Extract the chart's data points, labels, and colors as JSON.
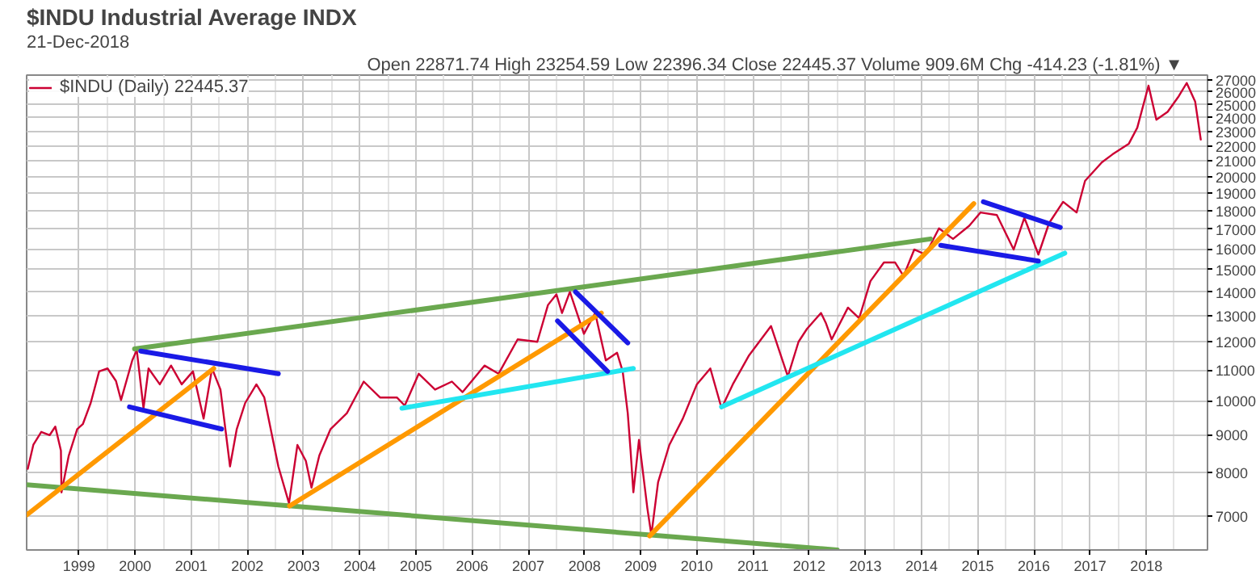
{
  "chart_data": {
    "type": "line",
    "title": "$INDU Industrial Average INDX",
    "annotations": [
      "21-Dec-2018",
      "Open 22871.74  High 23254.59  Low 22396.34  Close 22445.37  Volume 909.6M  Chg -414.23 (-1.81%) ▼"
    ],
    "log": "y",
    "grid": true,
    "legend": "top left",
    "marker": "none",
    "line_style": "solid",
    "xlim": [
      1998.07,
      2019.09
    ],
    "xticks": [
      1999,
      2000,
      2001,
      2002,
      2003,
      2004,
      2005,
      2006,
      2007,
      2008,
      2009,
      2010,
      2011,
      2012,
      2013,
      2014,
      2015,
      2016,
      2017,
      2018
    ],
    "ylim": [
      6300,
      27400
    ],
    "yticks": [
      7000,
      8000,
      9000,
      10000,
      11000,
      12000,
      13000,
      14000,
      15000,
      16000,
      17000,
      18000,
      19000,
      20000,
      21000,
      22000,
      23000,
      24000,
      25000,
      26000,
      27000
    ],
    "series": [
      {
        "name": "$INDU (Daily) 22445.37",
        "color": "#cc0033",
        "x": [
          1998.09,
          1998.19,
          1998.33,
          1998.48,
          1998.58,
          1998.68,
          1998.69,
          1998.82,
          1998.97,
          1999.07,
          1999.21,
          1999.36,
          1999.51,
          1999.66,
          1999.75,
          1999.95,
          2000.03,
          2000.15,
          2000.24,
          2000.44,
          2000.64,
          2000.83,
          2001.03,
          2001.22,
          2001.37,
          2001.52,
          2001.69,
          2001.81,
          2001.96,
          2002.16,
          2002.3,
          2002.55,
          2002.74,
          2002.89,
          2003.04,
          2003.14,
          2003.28,
          2003.48,
          2003.77,
          2004.07,
          2004.36,
          2004.66,
          2004.8,
          2005.05,
          2005.34,
          2005.64,
          2005.83,
          2006.22,
          2006.47,
          2006.81,
          2007.16,
          2007.35,
          2007.5,
          2007.6,
          2007.74,
          2007.99,
          2008.19,
          2008.38,
          2008.58,
          2008.68,
          2008.77,
          2008.82,
          2008.87,
          2008.97,
          2009.12,
          2009.19,
          2009.31,
          2009.51,
          2009.75,
          2010.0,
          2010.24,
          2010.44,
          2010.64,
          2010.93,
          2011.32,
          2011.62,
          2011.81,
          2011.96,
          2012.21,
          2012.3,
          2012.4,
          2012.69,
          2012.89,
          2013.09,
          2013.33,
          2013.53,
          2013.68,
          2013.87,
          2014.07,
          2014.31,
          2014.56,
          2014.85,
          2015.05,
          2015.34,
          2015.64,
          2015.83,
          2016.08,
          2016.27,
          2016.52,
          2016.76,
          2016.91,
          2017.21,
          2017.4,
          2017.69,
          2017.84,
          2018.04,
          2018.18,
          2018.38,
          2018.58,
          2018.72,
          2018.87,
          2018.97
        ],
        "values": [
          8100,
          8730,
          9080,
          8990,
          9230,
          8570,
          7530,
          8440,
          9160,
          9300,
          9930,
          10950,
          11050,
          10630,
          10020,
          11330,
          11700,
          9770,
          11050,
          10520,
          11150,
          10520,
          10950,
          9460,
          11050,
          10350,
          8160,
          9160,
          9930,
          10520,
          10100,
          8160,
          7280,
          8720,
          8300,
          7640,
          8440,
          9160,
          9620,
          10610,
          10100,
          10100,
          9850,
          10870,
          10350,
          10610,
          10270,
          11150,
          10870,
          12090,
          12000,
          13450,
          13900,
          13120,
          14010,
          12300,
          13120,
          11330,
          11600,
          10950,
          9620,
          8570,
          7530,
          8860,
          7160,
          6600,
          7770,
          8720,
          9460,
          10520,
          11050,
          9770,
          10520,
          11510,
          12600,
          10780,
          12000,
          12490,
          13120,
          12700,
          12090,
          13340,
          12910,
          14480,
          15340,
          15340,
          14710,
          15970,
          15720,
          17050,
          16500,
          17190,
          17910,
          17770,
          15970,
          17620,
          15720,
          17330,
          18510,
          17910,
          19750,
          20920,
          21440,
          22160,
          23280,
          26520,
          23860,
          24450,
          25680,
          26740,
          25250,
          22445.37
        ]
      },
      {
        "type": "line",
        "color": "#6aa84f",
        "x": [
          1999.99,
          2014.16
        ],
        "values": [
          11740,
          16500
        ]
      },
      {
        "type": "line",
        "color": "#6aa84f",
        "x": [
          1998.07,
          2012.5
        ],
        "values": [
          7710,
          6300
        ]
      },
      {
        "type": "line",
        "color": "#ff9900",
        "x": [
          1998.07,
          2001.4
        ],
        "values": [
          7020,
          11050
        ]
      },
      {
        "type": "line",
        "color": "#ff9900",
        "x": [
          2002.75,
          2008.3
        ],
        "values": [
          7220,
          13120
        ]
      },
      {
        "type": "line",
        "color": "#ff9900",
        "x": [
          2009.16,
          2014.93
        ],
        "values": [
          6580,
          18410
        ]
      },
      {
        "type": "line",
        "color": "#22e6f0",
        "x": [
          2004.75,
          2008.87
        ],
        "values": [
          9770,
          11050
        ]
      },
      {
        "type": "line",
        "color": "#22e6f0",
        "x": [
          2010.44,
          2016.55
        ],
        "values": [
          9810,
          15790
        ]
      },
      {
        "type": "line",
        "color": "#1a1ae6",
        "x": [
          2000.1,
          2002.55
        ],
        "values": [
          11660,
          10870
        ]
      },
      {
        "type": "line",
        "color": "#1a1ae6",
        "x": [
          1999.9,
          2001.54
        ],
        "values": [
          9810,
          9160
        ]
      },
      {
        "type": "line",
        "color": "#1a1ae6",
        "x": [
          2007.84,
          2008.77
        ],
        "values": [
          14010,
          11960
        ]
      },
      {
        "type": "line",
        "color": "#1a1ae6",
        "x": [
          2007.52,
          2008.41
        ],
        "values": [
          12800,
          10950
        ]
      },
      {
        "type": "line",
        "color": "#1a1ae6",
        "x": [
          2015.1,
          2016.47
        ],
        "values": [
          18510,
          17100
        ]
      },
      {
        "type": "line",
        "color": "#1a1ae6",
        "x": [
          2014.34,
          2016.08
        ],
        "values": [
          16180,
          15410
        ]
      }
    ]
  }
}
